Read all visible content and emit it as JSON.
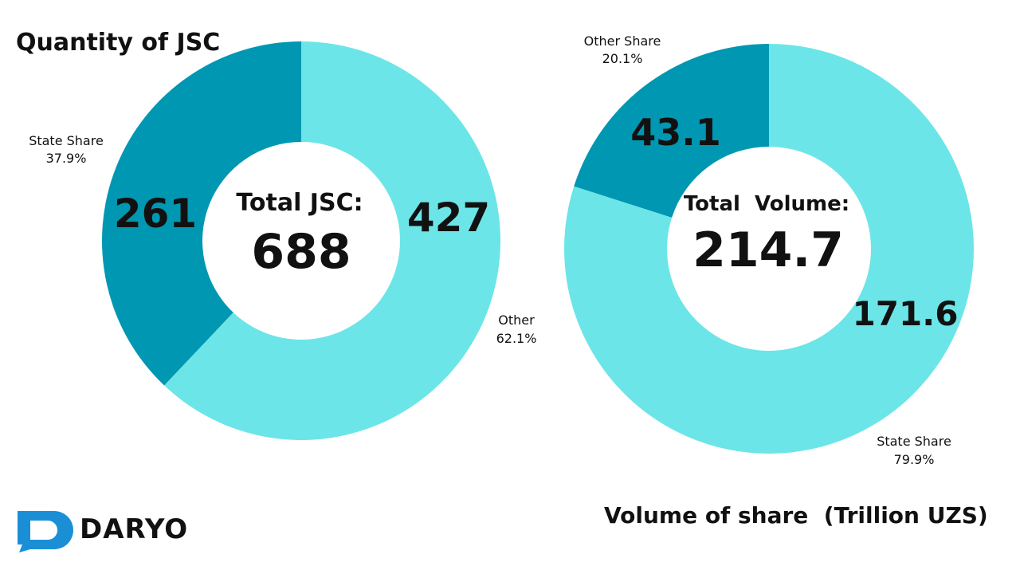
{
  "colors": {
    "dark_segment": "#0097b2",
    "light_segment": "#6ce5e8",
    "text": "#111111",
    "logo_blue": "#1a8fd6"
  },
  "brand": {
    "name": "DARYO"
  },
  "chart_data": [
    {
      "type": "pie",
      "title": "Quantity of JSC",
      "center_label": "Total JSC:",
      "center_value": "688",
      "slices": [
        {
          "label": "State Share",
          "percent": "37.9%",
          "value": 261,
          "value_label": "261",
          "color": "#0097b2"
        },
        {
          "label": "Other",
          "percent": "62.1%",
          "value": 427,
          "value_label": "427",
          "color": "#6ce5e8"
        }
      ]
    },
    {
      "type": "pie",
      "title": "Volume of share  (Trillion UZS)",
      "center_label": "Total  Volume:",
      "center_value": "214.7",
      "slices": [
        {
          "label": "Other Share",
          "percent": "20.1%",
          "value": 43.1,
          "value_label": "43.1",
          "color": "#0097b2"
        },
        {
          "label": "State Share",
          "percent": "79.9%",
          "value": 171.6,
          "value_label": "171.6",
          "color": "#6ce5e8"
        }
      ]
    }
  ]
}
